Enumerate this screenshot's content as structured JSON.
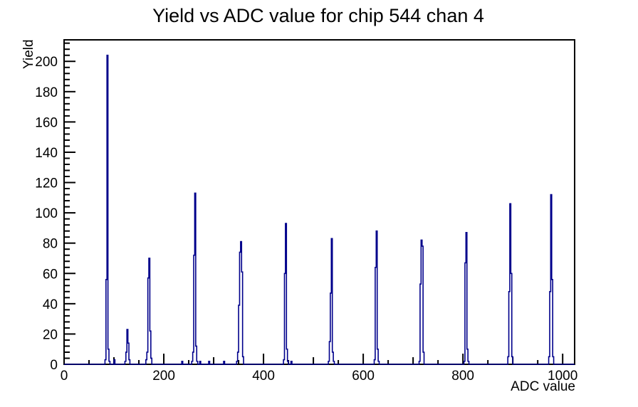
{
  "chart_data": {
    "type": "bar",
    "style": "root-histogram-step-outline",
    "title": "Yield vs ADC value for chip 544 chan 4",
    "xlabel": "ADC value",
    "ylabel": "Yield",
    "x_range": [
      0,
      1024
    ],
    "y_range": [
      0,
      214.2
    ],
    "grid": false,
    "legend": "none",
    "line_color": "#00008b",
    "axis_color": "#000000",
    "bin_width": 2,
    "x_axis": {
      "major_tick_values": [
        0,
        200,
        400,
        600,
        800,
        1000
      ],
      "major_tick_labels": [
        "0",
        "200",
        "400",
        "600",
        "800",
        "1000"
      ],
      "medium_tick_step": 100,
      "minor_tick_step": 50
    },
    "y_axis": {
      "major_tick_values": [
        0,
        20,
        40,
        60,
        80,
        100,
        120,
        140,
        160,
        180,
        200
      ],
      "major_tick_labels": [
        "0",
        "20",
        "40",
        "60",
        "80",
        "100",
        "120",
        "140",
        "160",
        "180",
        "200"
      ],
      "minor_tick_step": 4
    },
    "bins": [
      [
        82,
        3
      ],
      [
        84,
        56
      ],
      [
        86,
        204
      ],
      [
        88,
        10
      ],
      [
        90,
        2
      ],
      [
        100,
        3
      ],
      [
        122,
        2
      ],
      [
        124,
        8
      ],
      [
        126,
        23
      ],
      [
        128,
        14
      ],
      [
        130,
        3
      ],
      [
        164,
        3
      ],
      [
        166,
        8
      ],
      [
        168,
        57
      ],
      [
        170,
        70
      ],
      [
        172,
        22
      ],
      [
        174,
        4
      ],
      [
        236,
        2
      ],
      [
        256,
        2
      ],
      [
        258,
        8
      ],
      [
        260,
        72
      ],
      [
        262,
        113
      ],
      [
        264,
        12
      ],
      [
        266,
        2
      ],
      [
        272,
        2
      ],
      [
        290,
        2
      ],
      [
        320,
        2
      ],
      [
        346,
        2
      ],
      [
        348,
        8
      ],
      [
        350,
        39
      ],
      [
        352,
        74
      ],
      [
        354,
        81
      ],
      [
        356,
        61
      ],
      [
        358,
        5
      ],
      [
        440,
        3
      ],
      [
        442,
        60
      ],
      [
        444,
        93
      ],
      [
        446,
        10
      ],
      [
        448,
        2
      ],
      [
        455,
        2
      ],
      [
        530,
        2
      ],
      [
        532,
        15
      ],
      [
        534,
        47
      ],
      [
        536,
        83
      ],
      [
        538,
        8
      ],
      [
        540,
        2
      ],
      [
        622,
        3
      ],
      [
        624,
        64
      ],
      [
        626,
        88
      ],
      [
        628,
        10
      ],
      [
        630,
        2
      ],
      [
        712,
        2
      ],
      [
        714,
        53
      ],
      [
        716,
        82
      ],
      [
        718,
        78
      ],
      [
        720,
        8
      ],
      [
        802,
        2
      ],
      [
        804,
        67
      ],
      [
        806,
        87
      ],
      [
        808,
        10
      ],
      [
        810,
        2
      ],
      [
        890,
        5
      ],
      [
        892,
        48
      ],
      [
        894,
        106
      ],
      [
        896,
        60
      ],
      [
        898,
        5
      ],
      [
        972,
        5
      ],
      [
        974,
        48
      ],
      [
        976,
        112
      ],
      [
        978,
        56
      ],
      [
        980,
        5
      ]
    ]
  }
}
